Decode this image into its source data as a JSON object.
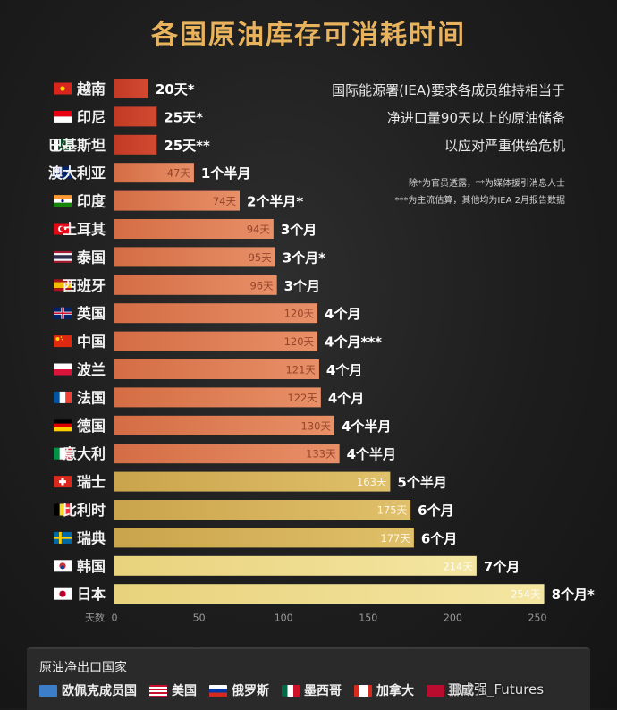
{
  "title": "各国原油库存可消耗时间",
  "notes": {
    "lines": [
      "国际能源署(IEA)要求各成员维持相当于",
      "净进口量90天以上的原油储备",
      "以应对严重供给危机"
    ],
    "small": [
      "除*为官员透露，**为媒体援引消息人士",
      "***为主流估算，其他均为IEA 2月报告数据"
    ]
  },
  "chart_data": {
    "type": "bar",
    "orientation": "horizontal",
    "xlabel": "天数",
    "xlim": [
      0,
      250
    ],
    "xticks": [
      0,
      50,
      100,
      150,
      200,
      250
    ],
    "categories": [
      "越南",
      "印尼",
      "巴基斯坦",
      "澳大利亚",
      "印度",
      "土耳其",
      "泰国",
      "西班牙",
      "英国",
      "中国",
      "波兰",
      "法国",
      "德国",
      "意大利",
      "瑞士",
      "比利时",
      "瑞典",
      "韩国",
      "日本"
    ],
    "values": [
      20,
      25,
      25,
      47,
      74,
      94,
      95,
      96,
      120,
      120,
      121,
      122,
      130,
      133,
      163,
      175,
      177,
      214,
      254
    ],
    "inside_labels": [
      "",
      "",
      "",
      "47天",
      "74天",
      "94天",
      "95天",
      "96天",
      "120天",
      "120天",
      "121天",
      "122天",
      "130天",
      "133天",
      "163天",
      "175天",
      "177天",
      "214天",
      "254天"
    ],
    "outside_labels": [
      "20天*",
      "25天*",
      "25天**",
      "1个半月",
      "2个半月*",
      "3个月",
      "3个月*",
      "3个月",
      "4个月",
      "4个月***",
      "4个月",
      "4个月",
      "4个半月",
      "4个半月",
      "5个半月",
      "6个月",
      "6个月",
      "7个月",
      "8个月*"
    ],
    "colors": {
      "low": "#c8402a",
      "mid": "#dd7e52",
      "high": "#d8b45a",
      "top": "#eedc8c"
    }
  },
  "flags": [
    "vn",
    "id",
    "pk",
    "au",
    "in",
    "tr",
    "th",
    "es",
    "gb",
    "cn",
    "pl",
    "fr",
    "de",
    "it",
    "ch",
    "be",
    "se",
    "kr",
    "jp"
  ],
  "footer": {
    "title": "原油净出口国家",
    "items": [
      {
        "label": "欧佩克成员国",
        "flag": "opec"
      },
      {
        "label": "美国",
        "flag": "us"
      },
      {
        "label": "俄罗斯",
        "flag": "ru"
      },
      {
        "label": "墨西哥",
        "flag": "mx"
      },
      {
        "label": "加拿大",
        "flag": "ca"
      },
      {
        "label": "挪威",
        "flag": "no"
      }
    ]
  },
  "watermark": "王成强_Futures"
}
